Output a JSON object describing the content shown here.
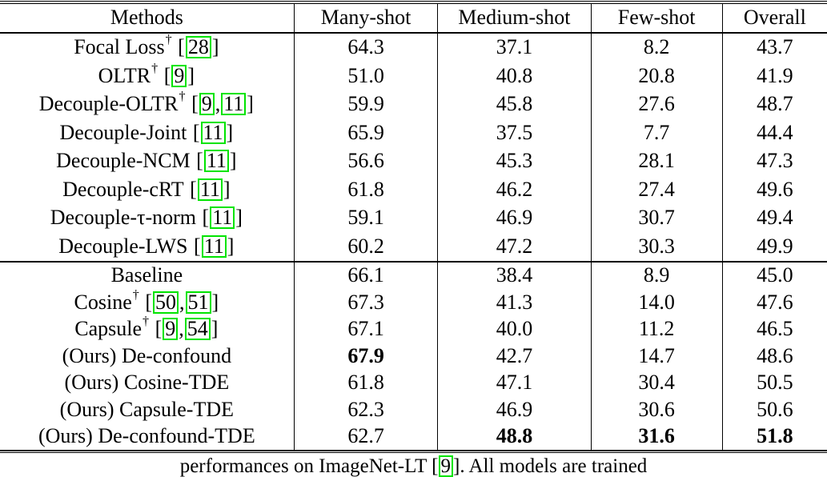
{
  "colors": {
    "citation_box": "#00e400",
    "rule": "#000000",
    "text": "#000000",
    "background": "#ffffff"
  },
  "table": {
    "headers": [
      "Methods",
      "Many-shot",
      "Medium-shot",
      "Few-shot",
      "Overall"
    ],
    "groups": [
      {
        "rows": [
          {
            "method": "Focal Loss",
            "dagger": true,
            "citations": [
              "28"
            ],
            "values": [
              "64.3",
              "37.1",
              "8.2",
              "43.7"
            ],
            "bold": []
          },
          {
            "method": "OLTR",
            "dagger": true,
            "citations": [
              "9"
            ],
            "values": [
              "51.0",
              "40.8",
              "20.8",
              "41.9"
            ],
            "bold": []
          },
          {
            "method": "Decouple-OLTR",
            "dagger": true,
            "citations": [
              "9",
              "11"
            ],
            "values": [
              "59.9",
              "45.8",
              "27.6",
              "48.7"
            ],
            "bold": []
          },
          {
            "method": "Decouple-Joint",
            "dagger": false,
            "citations": [
              "11"
            ],
            "values": [
              "65.9",
              "37.5",
              "7.7",
              "44.4"
            ],
            "bold": []
          },
          {
            "method": "Decouple-NCM",
            "dagger": false,
            "citations": [
              "11"
            ],
            "values": [
              "56.6",
              "45.3",
              "28.1",
              "47.3"
            ],
            "bold": []
          },
          {
            "method": "Decouple-cRT",
            "dagger": false,
            "citations": [
              "11"
            ],
            "values": [
              "61.8",
              "46.2",
              "27.4",
              "49.6"
            ],
            "bold": []
          },
          {
            "method": "Decouple-τ-norm",
            "dagger": false,
            "citations": [
              "11"
            ],
            "values": [
              "59.1",
              "46.9",
              "30.7",
              "49.4"
            ],
            "bold": []
          },
          {
            "method": "Decouple-LWS",
            "dagger": false,
            "citations": [
              "11"
            ],
            "values": [
              "60.2",
              "47.2",
              "30.3",
              "49.9"
            ],
            "bold": []
          }
        ]
      },
      {
        "rows": [
          {
            "method": "Baseline",
            "dagger": false,
            "citations": [],
            "values": [
              "66.1",
              "38.4",
              "8.9",
              "45.0"
            ],
            "bold": []
          },
          {
            "method": "Cosine",
            "dagger": true,
            "citations": [
              "50",
              "51"
            ],
            "values": [
              "67.3",
              "41.3",
              "14.0",
              "47.6"
            ],
            "bold": []
          },
          {
            "method": "Capsule",
            "dagger": true,
            "citations": [
              "9",
              "54"
            ],
            "values": [
              "67.1",
              "40.0",
              "11.2",
              "46.5"
            ],
            "bold": []
          },
          {
            "method": "(Ours) De-confound",
            "dagger": false,
            "citations": [],
            "values": [
              "67.9",
              "42.7",
              "14.7",
              "48.6"
            ],
            "bold": [
              0
            ]
          },
          {
            "method": "(Ours) Cosine-TDE",
            "dagger": false,
            "citations": [],
            "values": [
              "61.8",
              "47.1",
              "30.4",
              "50.5"
            ],
            "bold": []
          },
          {
            "method": "(Ours) Capsule-TDE",
            "dagger": false,
            "citations": [],
            "values": [
              "62.3",
              "46.9",
              "30.6",
              "50.6"
            ],
            "bold": []
          },
          {
            "method": "(Ours) De-confound-TDE",
            "dagger": false,
            "citations": [],
            "values": [
              "62.7",
              "48.8",
              "31.6",
              "51.8"
            ],
            "bold": [
              1,
              2,
              3
            ]
          }
        ]
      }
    ]
  },
  "caption": {
    "prefix": "performances on ImageNet-LT [",
    "citation": "9",
    "suffix": "]. All models are trained"
  }
}
